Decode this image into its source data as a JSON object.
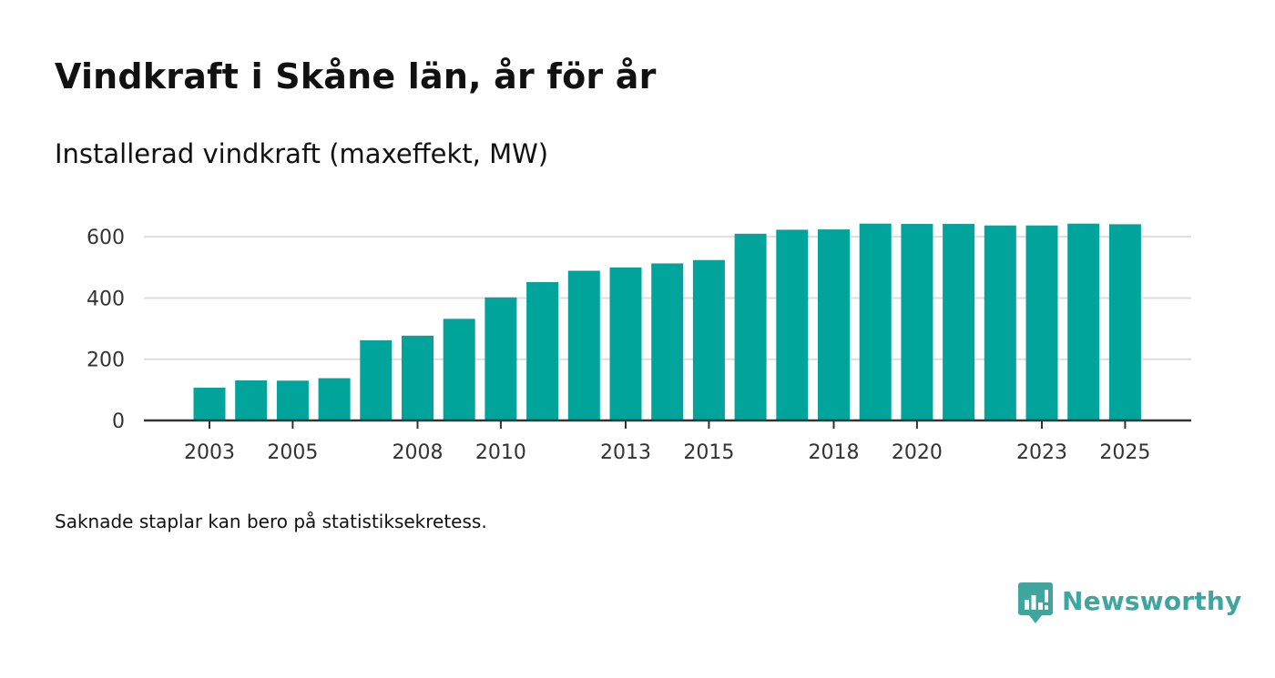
{
  "header": {
    "title": "Vindkraft i Skåne län, år för år",
    "subtitle": "Installerad vindkraft (maxeffekt, MW)"
  },
  "footnote": "Saknade staplar kan bero på statistiksekretess.",
  "brand": {
    "name": "Newsworthy",
    "color": "#3fa69f"
  },
  "chart_data": {
    "type": "bar",
    "title": "Vindkraft i Skåne län, år för år",
    "subtitle": "Installerad vindkraft (maxeffekt, MW)",
    "xlabel": "",
    "ylabel": "",
    "bar_color": "#00a49a",
    "categories": [
      "2003",
      "2004",
      "2005",
      "2006",
      "2007",
      "2008",
      "2009",
      "2010",
      "2011",
      "2012",
      "2013",
      "2014",
      "2015",
      "2016",
      "2017",
      "2018",
      "2019",
      "2020",
      "2021",
      "2022",
      "2023",
      "2024",
      "2025"
    ],
    "values": [
      107,
      131,
      130,
      138,
      262,
      277,
      332,
      402,
      452,
      489,
      500,
      513,
      524,
      610,
      623,
      624,
      643,
      642,
      642,
      637,
      637,
      643,
      641
    ],
    "x_tick_labels": [
      "2003",
      "2005",
      "2008",
      "2010",
      "2013",
      "2015",
      "2018",
      "2020",
      "2023",
      "2025"
    ],
    "y_ticks": [
      0,
      200,
      400,
      600
    ],
    "ylim": [
      0,
      660
    ],
    "grid": true
  }
}
